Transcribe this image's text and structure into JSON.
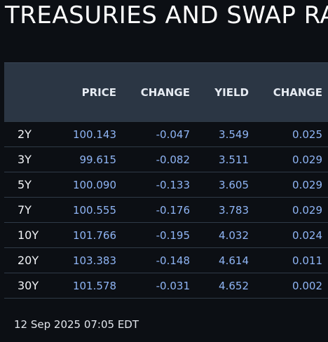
{
  "title": "TREASURIES AND SWAP RA",
  "table": {
    "headers": {
      "term": "",
      "price": "PRICE",
      "price_change": "CHANGE",
      "yield": "YIELD",
      "yield_change": "CHANGE"
    },
    "rows": [
      {
        "term": "2Y",
        "price": "100.143",
        "price_change": "-0.047",
        "yield": "3.549",
        "yield_change": "0.025"
      },
      {
        "term": "3Y",
        "price": "99.615",
        "price_change": "-0.082",
        "yield": "3.511",
        "yield_change": "0.029"
      },
      {
        "term": "5Y",
        "price": "100.090",
        "price_change": "-0.133",
        "yield": "3.605",
        "yield_change": "0.029"
      },
      {
        "term": "7Y",
        "price": "100.555",
        "price_change": "-0.176",
        "yield": "3.783",
        "yield_change": "0.029"
      },
      {
        "term": "10Y",
        "price": "101.766",
        "price_change": "-0.195",
        "yield": "4.032",
        "yield_change": "0.024"
      },
      {
        "term": "20Y",
        "price": "103.383",
        "price_change": "-0.148",
        "yield": "4.614",
        "yield_change": "0.011"
      },
      {
        "term": "30Y",
        "price": "101.578",
        "price_change": "-0.031",
        "yield": "4.652",
        "yield_change": "0.002"
      }
    ]
  },
  "timestamp": "12 Sep 2025 07:05 EDT",
  "colors": {
    "background": "#0c0f14",
    "header_background": "#2b3644",
    "value_blue": "#8fb5f5",
    "text_white": "#f2f4f7"
  }
}
